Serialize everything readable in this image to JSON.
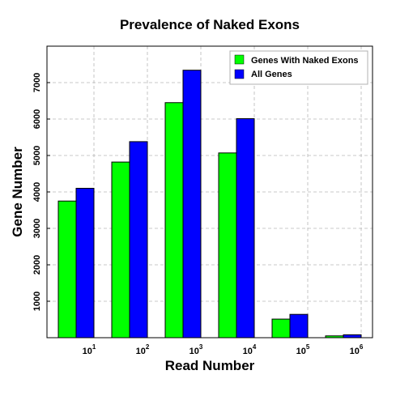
{
  "chart_data": {
    "type": "bar",
    "title": "Prevalence of Naked Exons",
    "xlabel": "Read Number",
    "ylabel": "Gene Number",
    "x_ticks": [
      {
        "base": "10",
        "exp": "1"
      },
      {
        "base": "10",
        "exp": "2"
      },
      {
        "base": "10",
        "exp": "3"
      },
      {
        "base": "10",
        "exp": "4"
      },
      {
        "base": "10",
        "exp": "5"
      },
      {
        "base": "10",
        "exp": "6"
      }
    ],
    "y_ticks": [
      1000,
      2000,
      3000,
      4000,
      5000,
      6000,
      7000
    ],
    "ylim": [
      0,
      8000
    ],
    "grid": true,
    "legend_position": "top-right",
    "series": [
      {
        "name": "Genes With Naked Exons",
        "color": "#00ff00",
        "values": [
          3750,
          4820,
          6450,
          5070,
          510,
          50
        ]
      },
      {
        "name": "All Genes",
        "color": "#0000ff",
        "values": [
          4100,
          5380,
          7340,
          6010,
          640,
          80
        ]
      }
    ]
  }
}
